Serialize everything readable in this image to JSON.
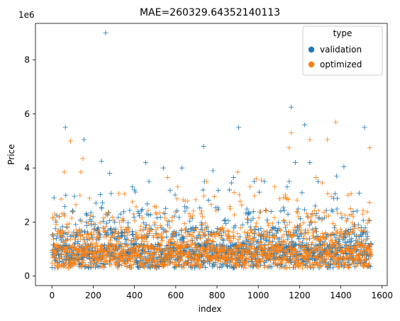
{
  "chart_data": {
    "type": "scatter",
    "title": "MAE=260329.64352140113",
    "xlabel": "index",
    "ylabel": "Price",
    "y_offset_label": "1e6",
    "xlim": [
      -80,
      1625
    ],
    "ylim": [
      -0.35,
      9.35
    ],
    "y_unit_multiplier": 1000000,
    "xticks": [
      0,
      200,
      400,
      600,
      800,
      1000,
      1200,
      1400,
      1600
    ],
    "xtick_labels": [
      "0",
      "200",
      "400",
      "600",
      "800",
      "1000",
      "1200",
      "1400",
      "1600"
    ],
    "yticks": [
      0,
      2,
      4,
      6,
      8
    ],
    "ytick_labels": [
      "0",
      "2",
      "4",
      "6",
      "8"
    ],
    "grid": false,
    "legend_title": "type",
    "legend_placement": "top-right",
    "marker": "+",
    "n_points_per_series": 1548,
    "series": [
      {
        "name": "validation",
        "color": "#1f77b4",
        "outliers": [
          [
            260,
            9.0
          ],
          [
            65,
            5.5
          ],
          [
            155,
            5.05
          ],
          [
            1160,
            6.25
          ],
          [
            1225,
            5.6
          ],
          [
            1515,
            5.5
          ],
          [
            905,
            5.5
          ],
          [
            735,
            4.8
          ],
          [
            1250,
            4.2
          ],
          [
            455,
            4.2
          ],
          [
            240,
            4.25
          ],
          [
            630,
            4.0
          ],
          [
            1415,
            4.05
          ],
          [
            540,
            4.0
          ],
          [
            1180,
            4.2
          ],
          [
            1380,
            3.7
          ],
          [
            880,
            3.65
          ],
          [
            780,
            3.9
          ],
          [
            280,
            3.8
          ],
          [
            740,
            3.5
          ],
          [
            870,
            3.45
          ],
          [
            470,
            3.5
          ],
          [
            1150,
            3.5
          ],
          [
            1030,
            3.5
          ],
          [
            980,
            3.5
          ],
          [
            1140,
            3.3
          ],
          [
            1290,
            3.5
          ],
          [
            390,
            3.3
          ]
        ]
      },
      {
        "name": "optimized",
        "color": "#ff7f0e",
        "outliers": [
          [
            1375,
            5.7
          ],
          [
            1160,
            5.3
          ],
          [
            1335,
            5.05
          ],
          [
            1250,
            5.05
          ],
          [
            90,
            5.0
          ],
          [
            1150,
            4.75
          ],
          [
            1540,
            4.75
          ],
          [
            150,
            4.35
          ],
          [
            60,
            3.85
          ],
          [
            140,
            3.85
          ],
          [
            900,
            3.85
          ],
          [
            560,
            3.65
          ],
          [
            1280,
            3.65
          ],
          [
            990,
            3.6
          ],
          [
            1310,
            3.45
          ],
          [
            1015,
            3.55
          ],
          [
            610,
            3.3
          ],
          [
            1080,
            3.3
          ],
          [
            750,
            3.5
          ],
          [
            1435,
            3.0
          ],
          [
            960,
            3.3
          ],
          [
            1450,
            3.05
          ]
        ]
      }
    ]
  }
}
